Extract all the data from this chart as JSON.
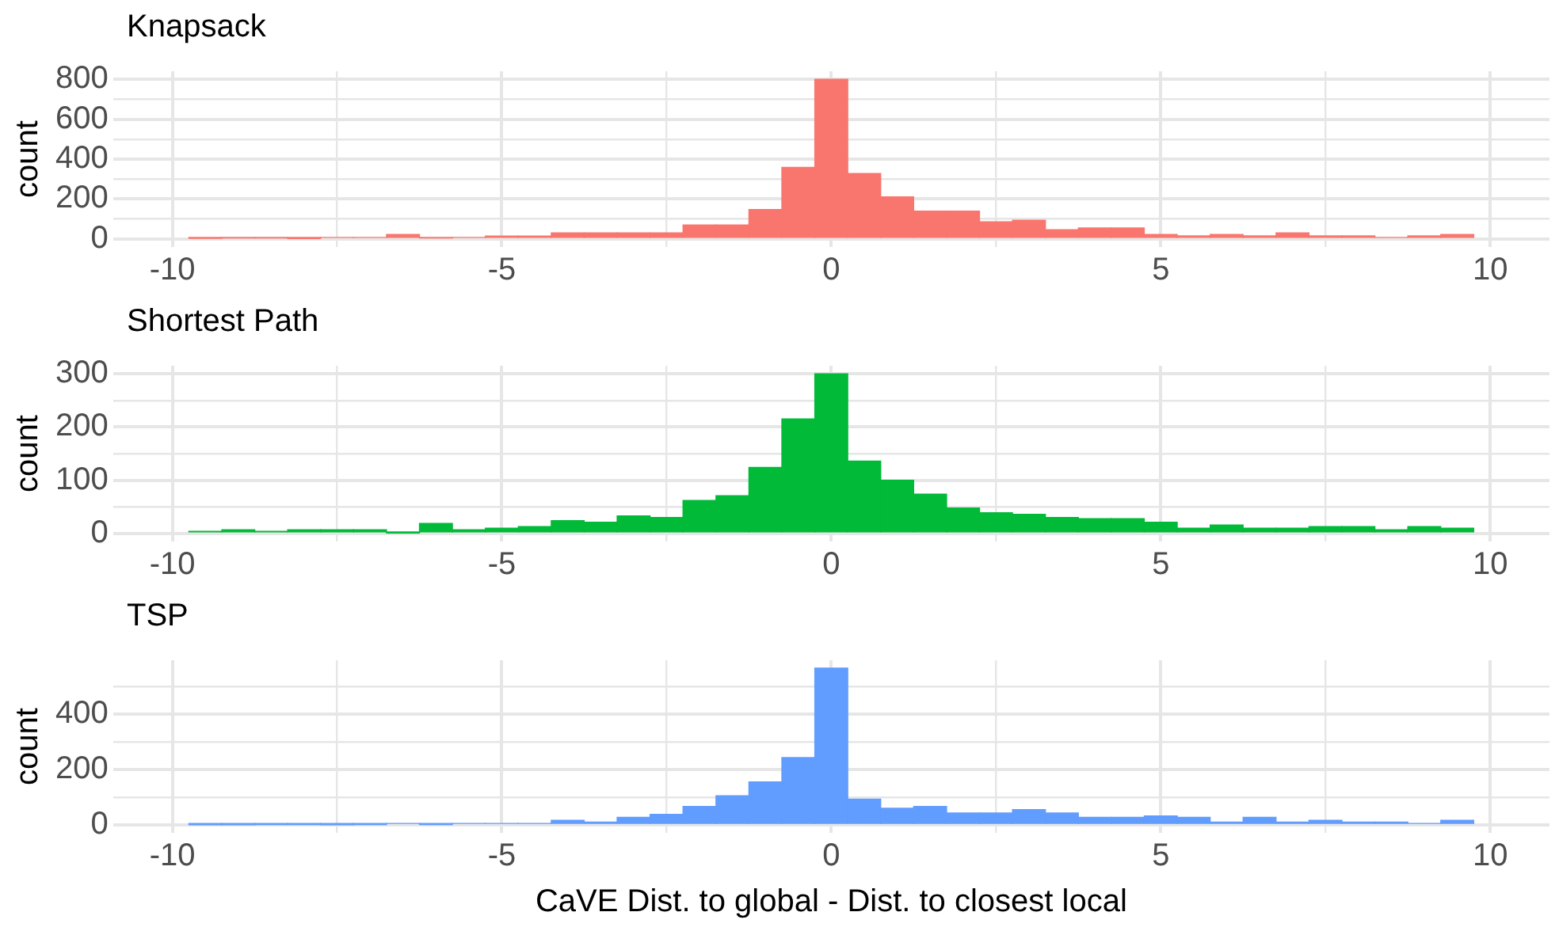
{
  "chart_data": [
    {
      "type": "histogram",
      "title": "Knapsack",
      "ylabel": "count",
      "color": "#f8766d",
      "grid": true,
      "legend": false,
      "bins": [
        -9.75,
        -9.25,
        -8.75,
        -8.25,
        -7.75,
        -7.25,
        -6.75,
        -6.25,
        -5.75,
        -5.25,
        -4.75,
        -4.25,
        -3.75,
        -3.25,
        -2.75,
        -2.25,
        -1.75,
        -1.25,
        -0.75,
        -0.25,
        0.25,
        0.75,
        1.25,
        1.75,
        2.25,
        2.75,
        3.25,
        3.75,
        4.25,
        4.75,
        5.25,
        5.75,
        6.25,
        6.75,
        7.25,
        7.75,
        8.25,
        8.75,
        9.25,
        9.75
      ],
      "values": [
        3,
        5,
        5,
        2,
        8,
        8,
        23,
        5,
        8,
        15,
        15,
        31,
        31,
        31,
        31,
        70,
        70,
        148,
        359,
        800,
        328,
        211,
        140,
        140,
        86,
        94,
        47,
        55,
        55,
        23,
        16,
        23,
        16,
        31,
        16,
        16,
        8,
        16,
        23
      ],
      "xlim": [
        -10.9,
        10.9
      ],
      "xticks": [
        -10,
        {
          "value": -7.5,
          "label": null
        },
        -5,
        {
          "value": -2.5,
          "label": null
        },
        0,
        {
          "value": 2.5,
          "label": null
        },
        5,
        {
          "value": 7.5,
          "label": null
        },
        10
      ],
      "ylim": [
        -40,
        840
      ],
      "yticks": [
        0,
        {
          "value": 100,
          "label": null
        },
        200,
        {
          "value": 300,
          "label": null
        },
        400,
        {
          "value": 500,
          "label": null
        },
        600,
        {
          "value": 700,
          "label": null
        },
        800
      ]
    },
    {
      "type": "histogram",
      "title": "Shortest Path",
      "ylabel": "count",
      "color": "#00ba38",
      "grid": true,
      "legend": false,
      "bins": [
        -9.75,
        -9.25,
        -8.75,
        -8.25,
        -7.75,
        -7.25,
        -6.75,
        -6.25,
        -5.75,
        -5.25,
        -4.75,
        -4.25,
        -3.75,
        -3.25,
        -2.75,
        -2.25,
        -1.75,
        -1.25,
        -0.75,
        -0.25,
        0.25,
        0.75,
        1.25,
        1.75,
        2.25,
        2.75,
        3.25,
        3.75,
        4.25,
        4.75,
        5.25,
        5.75,
        6.25,
        6.75,
        7.25,
        7.75,
        8.25,
        8.75,
        9.25,
        9.75
      ],
      "values": [
        4,
        7,
        4,
        7,
        7,
        7,
        1,
        19,
        7,
        10,
        13,
        24,
        21,
        33,
        30,
        62,
        71,
        124,
        215,
        300,
        136,
        100,
        74,
        48,
        39,
        36,
        30,
        28,
        28,
        21,
        10,
        16,
        10,
        10,
        13,
        13,
        7,
        13,
        10
      ],
      "xlim": [
        -10.9,
        10.9
      ],
      "xticks": [
        -10,
        {
          "value": -7.5,
          "label": null
        },
        -5,
        {
          "value": -2.5,
          "label": null
        },
        0,
        {
          "value": 2.5,
          "label": null
        },
        5,
        {
          "value": 7.5,
          "label": null
        },
        10
      ],
      "ylim": [
        -15,
        315
      ],
      "yticks": [
        0,
        {
          "value": 50,
          "label": null
        },
        100,
        {
          "value": 150,
          "label": null
        },
        200,
        {
          "value": 250,
          "label": null
        },
        300
      ]
    },
    {
      "type": "histogram",
      "title": "TSP",
      "ylabel": "count",
      "xlabel": "CaVE Dist. to global - Dist. to closest local",
      "color": "#619cff",
      "grid": true,
      "legend": false,
      "bins": [
        -9.75,
        -9.25,
        -8.75,
        -8.25,
        -7.75,
        -7.25,
        -6.75,
        -6.25,
        -5.75,
        -5.25,
        -4.75,
        -4.25,
        -3.75,
        -3.25,
        -2.75,
        -2.25,
        -1.75,
        -1.25,
        -0.75,
        -0.25,
        0.25,
        0.75,
        1.25,
        1.75,
        2.25,
        2.75,
        3.25,
        3.75,
        4.25,
        4.75,
        5.25,
        5.75,
        6.25,
        6.75,
        7.25,
        7.75,
        8.25,
        8.75,
        9.25,
        9.75
      ],
      "values": [
        1,
        1,
        2,
        2,
        1,
        2,
        6,
        2,
        6,
        6,
        6,
        17,
        11,
        28,
        39,
        67,
        106,
        156,
        244,
        567,
        94,
        61,
        67,
        44,
        44,
        56,
        44,
        28,
        28,
        33,
        28,
        11,
        28,
        11,
        17,
        11,
        11,
        6,
        17
      ],
      "xlim": [
        -10.9,
        10.9
      ],
      "xticks": [
        -10,
        {
          "value": -7.5,
          "label": null
        },
        -5,
        {
          "value": -2.5,
          "label": null
        },
        0,
        {
          "value": 2.5,
          "label": null
        },
        5,
        {
          "value": 7.5,
          "label": null
        },
        10
      ],
      "ylim": [
        -28,
        595
      ],
      "yticks": [
        0,
        {
          "value": 100,
          "label": null
        },
        200,
        {
          "value": 300,
          "label": null
        },
        400,
        {
          "value": 500,
          "label": null
        }
      ]
    }
  ]
}
